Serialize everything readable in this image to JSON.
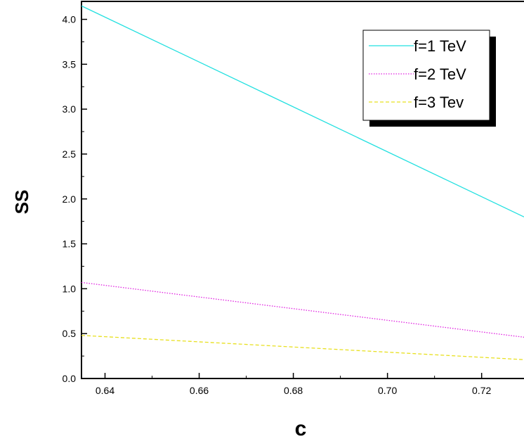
{
  "chart_data": {
    "type": "line",
    "title": "",
    "xlabel": "c",
    "ylabel": "SS",
    "xlim": [
      0.635,
      0.729
    ],
    "ylim": [
      0.0,
      4.2
    ],
    "xticks": [
      0.64,
      0.66,
      0.68,
      0.7,
      0.72
    ],
    "xtick_labels": [
      "0.64",
      "0.66",
      "0.68",
      "0.70",
      "0.72"
    ],
    "yticks": [
      0.0,
      0.5,
      1.0,
      1.5,
      2.0,
      2.5,
      3.0,
      3.5,
      4.0
    ],
    "ytick_labels": [
      "0.0",
      "0.5",
      "1.0",
      "1.5",
      "2.0",
      "2.5",
      "3.0",
      "3.5",
      "4.0"
    ],
    "grid": false,
    "legend_position": "top-right",
    "series": [
      {
        "name": "f=1 TeV",
        "color": "#22e0e0",
        "style": "solid",
        "x": [
          0.635,
          0.729
        ],
        "y": [
          4.15,
          1.8
        ]
      },
      {
        "name": "f=2 TeV",
        "color": "#e020e0",
        "style": "dotted",
        "x": [
          0.635,
          0.729
        ],
        "y": [
          1.07,
          0.46
        ]
      },
      {
        "name": "f=3 Tev",
        "color": "#e8e020",
        "style": "dashed",
        "x": [
          0.635,
          0.729
        ],
        "y": [
          0.48,
          0.21
        ]
      }
    ]
  }
}
